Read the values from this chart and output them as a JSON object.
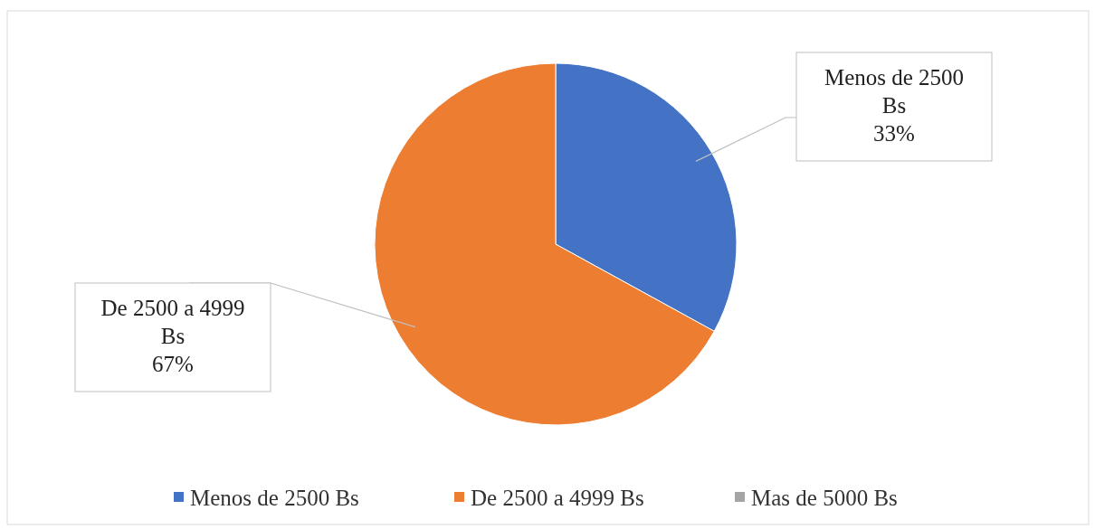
{
  "chart_data": {
    "type": "pie",
    "categories": [
      "Menos de 2500 Bs",
      "De 2500 a 4999 Bs",
      "Mas de 5000 Bs"
    ],
    "values": [
      33,
      67,
      0
    ],
    "colors": [
      "#4472c4",
      "#ed7d31",
      "#a5a5a5"
    ],
    "value_labels": [
      "33%",
      "67%",
      null
    ],
    "legend": "bottom"
  }
}
